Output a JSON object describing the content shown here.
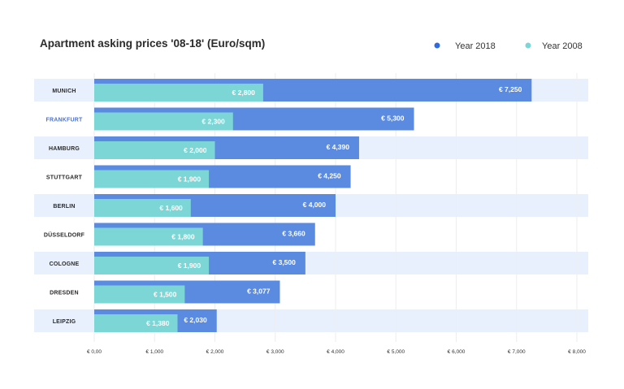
{
  "chart_data": {
    "type": "bar",
    "orientation": "horizontal",
    "title": "Apartment asking prices '08-18' (Euro/sqm)",
    "xlabel": "",
    "ylabel": "",
    "categories": [
      "MUNICH",
      "FRANKFURT",
      "HAMBURG",
      "STUTTGART",
      "BERLIN",
      "DÜSSELDORF",
      "COLOGNE",
      "DRESDEN",
      "LEIPZIG"
    ],
    "highlighted_category": "FRANKFURT",
    "series": [
      {
        "name": "Year 2018",
        "color": "#5b8be0",
        "values": [
          7250,
          5300,
          4390,
          4250,
          4000,
          3660,
          3500,
          3077,
          2030
        ],
        "labels": [
          "€ 7,250",
          "€ 5,300",
          "€ 4,390",
          "€ 4,250",
          "€ 4,000",
          "€ 3,660",
          "€ 3,500",
          "€ 3,077",
          "€ 2,030"
        ]
      },
      {
        "name": "Year 2008",
        "color": "#7dd6d6",
        "values": [
          2800,
          2300,
          2000,
          1900,
          1600,
          1800,
          1900,
          1500,
          1380
        ],
        "labels": [
          "€ 2,800",
          "€ 2,300",
          "€ 2,000",
          "€ 1,900",
          "€ 1,600",
          "€ 1,800",
          "€ 1,900",
          "€ 1,500",
          "€ 1,380"
        ]
      }
    ],
    "xlim": [
      0,
      8000
    ],
    "xticks": [
      0,
      1000,
      2000,
      3000,
      4000,
      5000,
      6000,
      7000,
      8000
    ],
    "xtick_labels": [
      "€ 0,00",
      "€ 1,000",
      "€ 2,000",
      "€ 3,000",
      "€ 4,000",
      "€ 5,000",
      "€ 6,000",
      "€ 7,000",
      "€ 8,000"
    ],
    "grid": true,
    "legend": {
      "position": "top-right",
      "markers": [
        "Year 2018",
        "Year 2008"
      ]
    },
    "row_band_colors": {
      "odd": "#e8f0fd",
      "even": "#ffffff"
    },
    "legend_colors": {
      "Year 2018": "#2f6ae0",
      "Year 2008": "#7dd6d6"
    },
    "highlight_color": "#4a74d6"
  }
}
